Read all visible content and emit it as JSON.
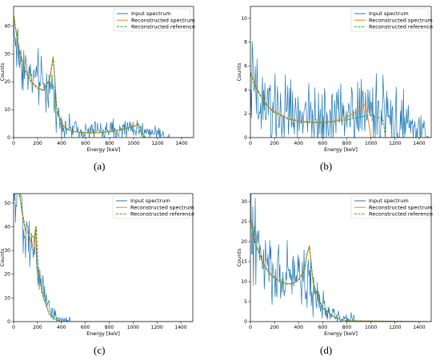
{
  "panels": [
    {
      "caption": "(a)",
      "chart_data": {
        "type": "line",
        "xlabel": "Energy [keV]",
        "ylabel": "Counts",
        "xlim": [
          0,
          1500
        ],
        "ylim": [
          0,
          47
        ],
        "xticks": [
          0,
          200,
          400,
          600,
          800,
          1000,
          1200,
          1400
        ],
        "yticks": [
          0,
          10,
          20,
          30,
          40
        ],
        "legend_position": "top-right",
        "series": [
          {
            "name": "Input spectrum",
            "color": "#1f77b4",
            "style": "noisy",
            "x": [
              0,
              25,
              50,
              100,
              150,
              200,
              250,
              300,
              330,
              360,
              400,
              450,
              500,
              600,
              700,
              800,
              900,
              1000,
              1050,
              1100,
              1200,
              1260,
              1300,
              1400,
              1500
            ],
            "y": [
              40,
              33,
              29,
              25,
              22,
              20,
              19,
              19,
              17,
              10,
              5,
              3.5,
              3,
              2.6,
              2.5,
              2.5,
              2.8,
              3.5,
              3.2,
              2.5,
              1.5,
              0.5,
              0,
              0,
              0
            ]
          },
          {
            "name": "Reconstructed spectrum",
            "color": "#ff7f0e",
            "style": "solid",
            "x": [
              0,
              25,
              50,
              100,
              150,
              200,
              250,
              300,
              330,
              345,
              360,
              400,
              450,
              500,
              600,
              700,
              800,
              900,
              1000,
              1040,
              1060,
              1100,
              1500
            ],
            "y": [
              44,
              37,
              31,
              24,
              20,
              18,
              17,
              21,
              29,
              20,
              10,
              5,
              3,
              2.2,
              1.8,
              1.8,
              2.2,
              3,
              4,
              5,
              2,
              0,
              0
            ]
          },
          {
            "name": "Reconstructed reference",
            "color": "#2ca02c",
            "style": "dashed",
            "x": [
              0,
              25,
              50,
              100,
              150,
              200,
              250,
              300,
              330,
              345,
              360,
              400,
              450,
              500,
              600,
              700,
              800,
              900,
              1000,
              1040,
              1060,
              1100,
              1500
            ],
            "y": [
              43.5,
              36.5,
              30.5,
              23.5,
              19.6,
              17.6,
              16.8,
              20.6,
              28.6,
              19.6,
              9.8,
              4.8,
              2.9,
              2.1,
              1.7,
              1.7,
              2.1,
              2.9,
              3.9,
              4.8,
              1.9,
              0,
              0
            ]
          }
        ]
      }
    },
    {
      "caption": "(b)",
      "chart_data": {
        "type": "line",
        "xlabel": "Energy [keV]",
        "ylabel": "Counts",
        "xlim": [
          0,
          1500
        ],
        "ylim": [
          0,
          11
        ],
        "xticks": [
          0,
          200,
          400,
          600,
          800,
          1000,
          1200,
          1400
        ],
        "yticks": [
          0,
          2,
          4,
          6,
          8,
          10
        ],
        "legend_position": "top-right",
        "series": [
          {
            "name": "Input spectrum",
            "color": "#1f77b4",
            "style": "noisy",
            "x": [
              0,
              50,
              100,
              200,
              300,
              400,
              500,
              600,
              700,
              800,
              900,
              1000,
              1100,
              1200,
              1300,
              1400,
              1500
            ],
            "y": [
              4,
              3.2,
              2.6,
              2.2,
              2,
              1.8,
              1.6,
              1.6,
              1.8,
              2.2,
              2.6,
              2.4,
              2,
              1.4,
              0.9,
              0.4,
              0
            ]
          },
          {
            "name": "Reconstructed spectrum",
            "color": "#ff7f0e",
            "style": "solid",
            "x": [
              0,
              50,
              100,
              150,
              200,
              300,
              400,
              500,
              600,
              700,
              800,
              900,
              950,
              960,
              1000,
              1500
            ],
            "y": [
              5.5,
              4.2,
              3.3,
              2.6,
              2.2,
              1.7,
              1.4,
              1.3,
              1.3,
              1.4,
              1.7,
              2.3,
              2.8,
              2.6,
              0,
              0
            ]
          },
          {
            "name": "Reconstructed reference",
            "color": "#2ca02c",
            "style": "dashed",
            "x": [
              0,
              50,
              100,
              150,
              200,
              300,
              400,
              500,
              600,
              700,
              800,
              900,
              1000,
              1050,
              1100,
              1120,
              1500
            ],
            "y": [
              5.3,
              4.1,
              3.2,
              2.5,
              2.1,
              1.6,
              1.35,
              1.25,
              1.25,
              1.35,
              1.5,
              1.7,
              1.9,
              1.7,
              1.6,
              0,
              0
            ]
          }
        ]
      }
    },
    {
      "caption": "(c)",
      "chart_data": {
        "type": "line",
        "xlabel": "Energy [keV]",
        "ylabel": "Counts",
        "xlim": [
          0,
          1500
        ],
        "ylim": [
          0,
          54
        ],
        "xticks": [
          0,
          200,
          400,
          600,
          800,
          1000,
          1200,
          1400
        ],
        "yticks": [
          0,
          10,
          20,
          30,
          40,
          50
        ],
        "legend_position": "top-right",
        "series": [
          {
            "name": "Input spectrum",
            "color": "#1f77b4",
            "style": "noisy",
            "x": [
              0,
              50,
              70,
              100,
              130,
              160,
              180,
              200,
              250,
              300,
              350,
              400,
              500,
              1500
            ],
            "y": [
              54,
              54,
              50,
              40,
              38,
              30,
              32,
              22,
              14,
              6,
              2,
              0.5,
              0,
              0
            ]
          },
          {
            "name": "Reconstructed spectrum",
            "color": "#ff7f0e",
            "style": "solid",
            "x": [
              0,
              50,
              70,
              100,
              130,
              155,
              170,
              185,
              200,
              250,
              300,
              350,
              400,
              1500
            ],
            "y": [
              54,
              54,
              46,
              38,
              37,
              31,
              34,
              40,
              22,
              10,
              3,
              1,
              0,
              0
            ]
          },
          {
            "name": "Reconstructed reference",
            "color": "#2ca02c",
            "style": "dashed",
            "x": [
              0,
              50,
              70,
              100,
              130,
              160,
              175,
              190,
              205,
              250,
              300,
              350,
              400,
              1500
            ],
            "y": [
              54,
              54,
              47,
              39,
              38,
              36,
              35,
              40,
              22,
              10,
              3,
              1,
              0,
              0
            ]
          }
        ]
      }
    },
    {
      "caption": "(d)",
      "chart_data": {
        "type": "line",
        "xlabel": "Energy [keV]",
        "ylabel": "Counts",
        "xlim": [
          0,
          1500
        ],
        "ylim": [
          0,
          32
        ],
        "xticks": [
          0,
          200,
          400,
          600,
          800,
          1000,
          1200,
          1400
        ],
        "yticks": [
          0,
          5,
          10,
          15,
          20,
          25,
          30
        ],
        "legend_position": "top-right",
        "series": [
          {
            "name": "Input spectrum",
            "color": "#1f77b4",
            "style": "noisy",
            "x": [
              0,
              25,
              50,
              100,
              150,
              200,
              250,
              300,
              350,
              400,
              450,
              480,
              520,
              560,
              600,
              650,
              700,
              800,
              900,
              1500
            ],
            "y": [
              25,
              21,
              19,
              15,
              13,
              12,
              11,
              11.5,
              12,
              12,
              11,
              10,
              8,
              6,
              4,
              2.5,
              1.2,
              0.3,
              0,
              0
            ]
          },
          {
            "name": "Reconstructed spectrum",
            "color": "#ff7f0e",
            "style": "solid",
            "x": [
              0,
              25,
              50,
              100,
              150,
              200,
              250,
              300,
              350,
              400,
              450,
              470,
              490,
              520,
              560,
              600,
              700,
              800,
              1500
            ],
            "y": [
              27,
              22,
              19,
              15,
              12.5,
              11,
              10,
              9.5,
              9.5,
              10.5,
              13,
              17,
              19,
              10,
              6,
              3.5,
              1,
              0.2,
              0
            ]
          },
          {
            "name": "Reconstructed reference",
            "color": "#2ca02c",
            "style": "dashed",
            "x": [
              0,
              25,
              50,
              100,
              150,
              200,
              250,
              300,
              350,
              400,
              450,
              470,
              490,
              520,
              560,
              600,
              700,
              800,
              1500
            ],
            "y": [
              26.5,
              21.5,
              18.7,
              14.7,
              12.3,
              10.8,
              9.9,
              9.4,
              9.4,
              10.4,
              12.9,
              16.8,
              18.8,
              9.8,
              5.9,
              3.4,
              1,
              0.2,
              0
            ]
          }
        ]
      }
    }
  ]
}
